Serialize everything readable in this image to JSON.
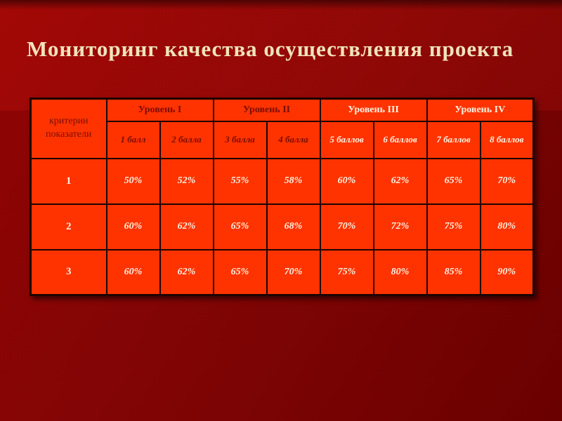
{
  "slide": {
    "title": "Мониторинг качества осуществления проекта"
  },
  "table": {
    "corner_header": "критерии показатели",
    "level_headers": [
      {
        "label": "Уровень I",
        "text_style": "dark"
      },
      {
        "label": "Уровень II",
        "text_style": "dark"
      },
      {
        "label": "Уровень III",
        "text_style": "light"
      },
      {
        "label": "Уровень IV",
        "text_style": "light"
      }
    ],
    "score_headers": [
      {
        "label": "1 балл",
        "text_style": "dark"
      },
      {
        "label": "2 балла",
        "text_style": "dark"
      },
      {
        "label": "3 балла",
        "text_style": "dark"
      },
      {
        "label": "4 балла",
        "text_style": "dark"
      },
      {
        "label": "5 баллов",
        "text_style": "light"
      },
      {
        "label": "6 баллов",
        "text_style": "light"
      },
      {
        "label": "7 баллов",
        "text_style": "light"
      },
      {
        "label": "8 баллов",
        "text_style": "light"
      }
    ],
    "rows": [
      {
        "label": "1",
        "values": [
          "50%",
          "52%",
          "55%",
          "58%",
          "60%",
          "62%",
          "65%",
          "70%"
        ]
      },
      {
        "label": "2",
        "values": [
          "60%",
          "62%",
          "65%",
          "68%",
          "70%",
          "72%",
          "75%",
          "80%"
        ]
      },
      {
        "label": "3",
        "values": [
          "60%",
          "62%",
          "65%",
          "70%",
          "75%",
          "80%",
          "85%",
          "90%"
        ]
      }
    ]
  },
  "colors": {
    "cell_bg": "#ff3300",
    "border": "#1d0400",
    "dark_text": "#7a0e00",
    "light_text": "#fff2e2",
    "title_text": "#f1e3bb",
    "bg_top": "#9c0404",
    "bg_bottom": "#700000"
  }
}
